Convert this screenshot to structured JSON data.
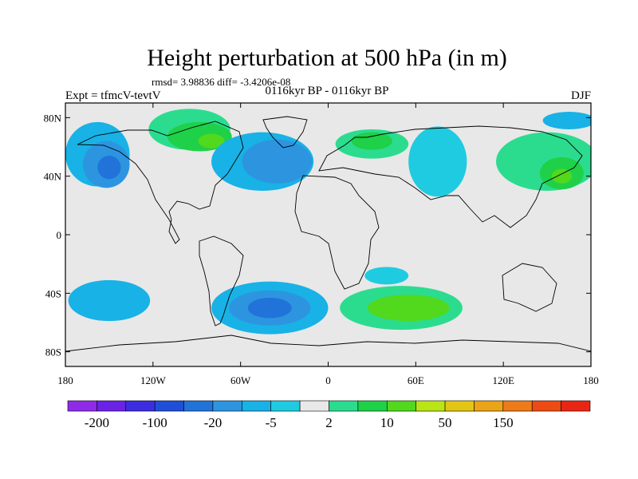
{
  "title": "Height perturbation at 500 hPa (in m)",
  "stats": "rmsd= 3.98836 diff= -3.4206e-08",
  "experiment": "Expt = tfmcV-tevtV",
  "period": "0116kyr BP - 0116kyr BP",
  "season": "DJF",
  "lat_ticks": [
    {
      "label": "80N",
      "lat": 80
    },
    {
      "label": "40N",
      "lat": 40
    },
    {
      "label": "0",
      "lat": 0
    },
    {
      "label": "40S",
      "lat": -40
    },
    {
      "label": "80S",
      "lat": -80
    }
  ],
  "lon_ticks": [
    {
      "label": "180",
      "lon": -180
    },
    {
      "label": "120W",
      "lon": -120
    },
    {
      "label": "60W",
      "lon": -60
    },
    {
      "label": "0",
      "lon": 0
    },
    {
      "label": "60E",
      "lon": 60
    },
    {
      "label": "120E",
      "lon": 120
    },
    {
      "label": "180",
      "lon": 180
    }
  ],
  "colorbar": {
    "colors": [
      "#8f2be8",
      "#6b22e6",
      "#3c2ee0",
      "#1f4fd9",
      "#2173da",
      "#2d95e0",
      "#18b2e6",
      "#1fcbe0",
      "#e8e8e8",
      "#2bdc8f",
      "#1fd049",
      "#52d81c",
      "#b9e515",
      "#e3c515",
      "#eba318",
      "#ee7a18",
      "#ee4a14",
      "#ea2514"
    ],
    "labels": [
      {
        "text": "-200",
        "boundary": 1
      },
      {
        "text": "-100",
        "boundary": 3
      },
      {
        "text": "-20",
        "boundary": 5
      },
      {
        "text": "-5",
        "boundary": 7
      },
      {
        "text": "2",
        "boundary": 9
      },
      {
        "text": "10",
        "boundary": 11
      },
      {
        "text": "50",
        "boundary": 13
      },
      {
        "text": "150",
        "boundary": 15
      }
    ]
  },
  "map": {
    "lon_range": [
      -180,
      180
    ],
    "lat_range": [
      -90,
      90
    ],
    "background_color": "#e8e8e8",
    "anomalies": [
      {
        "lon": -158,
        "lat": 55,
        "rlon": 22,
        "rlat": 22,
        "color": "#18b2e6"
      },
      {
        "lon": -152,
        "lat": 48,
        "rlon": 16,
        "rlat": 16,
        "color": "#2d95e0"
      },
      {
        "lon": -150,
        "lat": 46,
        "rlon": 8,
        "rlat": 8,
        "color": "#2173da"
      },
      {
        "lon": -95,
        "lat": 72,
        "rlon": 28,
        "rlat": 14,
        "color": "#2bdc8f"
      },
      {
        "lon": -88,
        "lat": 67,
        "rlon": 22,
        "rlat": 10,
        "color": "#1fd049"
      },
      {
        "lon": -80,
        "lat": 64,
        "rlon": 9,
        "rlat": 5,
        "color": "#52d81c"
      },
      {
        "lon": -45,
        "lat": 50,
        "rlon": 35,
        "rlat": 20,
        "color": "#18b2e6"
      },
      {
        "lon": -35,
        "lat": 50,
        "rlon": 24,
        "rlat": 15,
        "color": "#2d95e0"
      },
      {
        "lon": 30,
        "lat": 62,
        "rlon": 25,
        "rlat": 10,
        "color": "#2bdc8f"
      },
      {
        "lon": 30,
        "lat": 64,
        "rlon": 14,
        "rlat": 6,
        "color": "#1fd049"
      },
      {
        "lon": 75,
        "lat": 50,
        "rlon": 20,
        "rlat": 24,
        "color": "#1fcbe0"
      },
      {
        "lon": 150,
        "lat": 50,
        "rlon": 35,
        "rlat": 20,
        "color": "#2bdc8f"
      },
      {
        "lon": 160,
        "lat": 42,
        "rlon": 15,
        "rlat": 11,
        "color": "#1fd049"
      },
      {
        "lon": 160,
        "lat": 40,
        "rlon": 7,
        "rlat": 5,
        "color": "#52d81c"
      },
      {
        "lon": 165,
        "lat": 78,
        "rlon": 18,
        "rlat": 6,
        "color": "#18b2e6"
      },
      {
        "lon": -150,
        "lat": -45,
        "rlon": 28,
        "rlat": 14,
        "color": "#18b2e6"
      },
      {
        "lon": -40,
        "lat": -50,
        "rlon": 40,
        "rlat": 18,
        "color": "#18b2e6"
      },
      {
        "lon": -40,
        "lat": -50,
        "rlon": 28,
        "rlat": 12,
        "color": "#2d95e0"
      },
      {
        "lon": -40,
        "lat": -50,
        "rlon": 15,
        "rlat": 7,
        "color": "#2173da"
      },
      {
        "lon": 50,
        "lat": -50,
        "rlon": 42,
        "rlat": 15,
        "color": "#2bdc8f"
      },
      {
        "lon": 55,
        "lat": -50,
        "rlon": 28,
        "rlat": 9,
        "color": "#52d81c"
      },
      {
        "lon": 40,
        "lat": -28,
        "rlon": 15,
        "rlat": 6,
        "color": "#1fcbe0"
      }
    ]
  }
}
